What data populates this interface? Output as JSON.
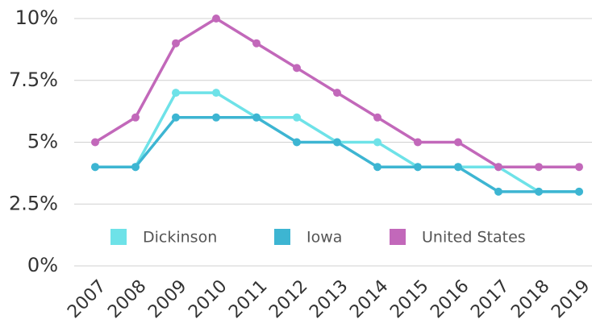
{
  "chart_data": {
    "type": "line",
    "categories": [
      "2007",
      "2008",
      "2009",
      "2010",
      "2011",
      "2012",
      "2013",
      "2014",
      "2015",
      "2016",
      "2017",
      "2018",
      "2019"
    ],
    "series": [
      {
        "name": "Dickinson",
        "color": "#6ee2e8",
        "values": [
          4,
          4,
          7,
          7,
          6,
          6,
          5,
          5,
          4,
          4,
          4,
          3,
          3
        ]
      },
      {
        "name": "Iowa",
        "color": "#3db5d2",
        "values": [
          4,
          4,
          6,
          6,
          6,
          5,
          5,
          4,
          4,
          4,
          3,
          3,
          3
        ]
      },
      {
        "name": "United States",
        "color": "#c268ba",
        "values": [
          5,
          6,
          9,
          10,
          9,
          8,
          7,
          6,
          5,
          5,
          4,
          4,
          4
        ]
      }
    ],
    "ylim": [
      0,
      10
    ],
    "yticks": [
      {
        "value": 0,
        "label": "0%"
      },
      {
        "value": 2.5,
        "label": "2.5%"
      },
      {
        "value": 5,
        "label": "5%"
      },
      {
        "value": 7.5,
        "label": "7.5%"
      },
      {
        "value": 10,
        "label": "10%"
      }
    ],
    "grid": true
  }
}
